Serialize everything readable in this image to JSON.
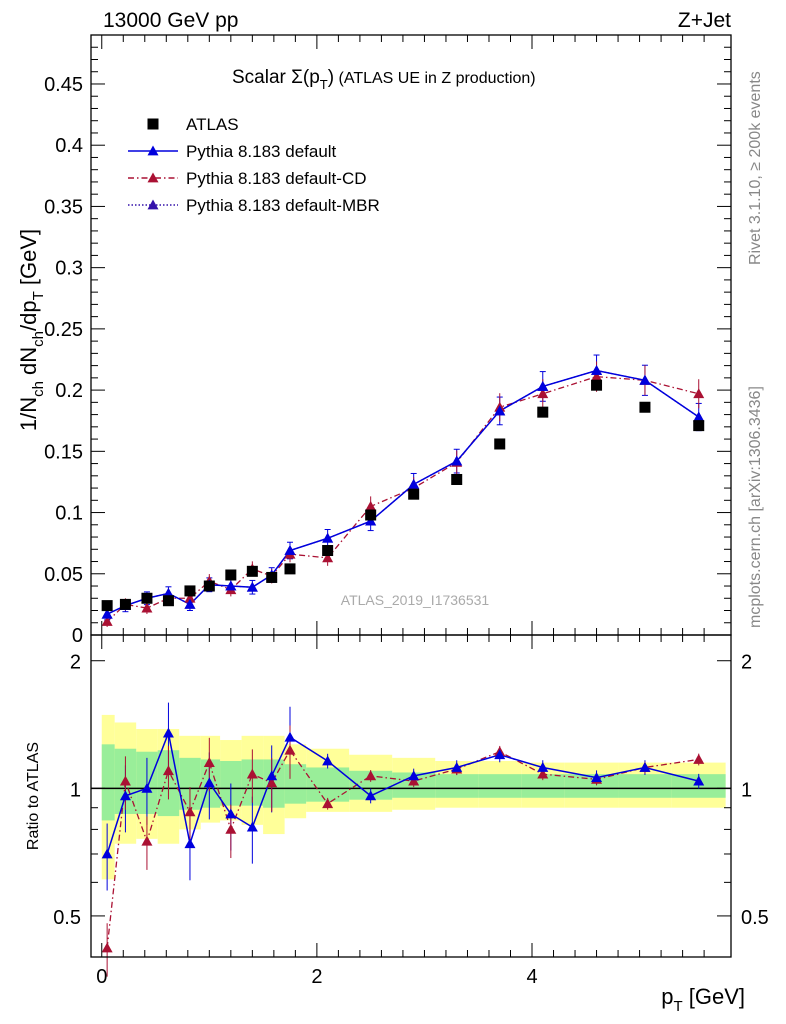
{
  "header": {
    "left": "13000 GeV pp",
    "right": "Z+Jet"
  },
  "side_labels": {
    "rivet": "Rivet 3.1.10, ≥ 200k events",
    "mcplots": "mcplots.cern.ch [arXiv:1306.3436]"
  },
  "watermark": "ATLAS_2019_I1736531",
  "colors": {
    "data": "#000000",
    "default": "#0000dd",
    "cd": "#aa1133",
    "mbr": "#3311aa",
    "band_inner": "#99ee99",
    "band_outer": "#ffff99"
  },
  "chart_data": {
    "type": "scatter",
    "title": "Scalar Σ(p_T) (ATLAS UE in Z production)",
    "xlabel": "p_T [GeV]",
    "ylabel": "1/N_ch dN_ch/dp_T [GeV]",
    "ratio_ylabel": "Ratio to ATLAS",
    "xlim": [
      -0.1,
      5.85
    ],
    "ylim": [
      0,
      0.49
    ],
    "ratio_ylim": [
      0.4,
      2.3
    ],
    "xticks": [
      "0",
      "2",
      "4"
    ],
    "yticks": [
      "0",
      "0.05",
      "0.1",
      "0.15",
      "0.2",
      "0.25",
      "0.3",
      "0.35",
      "0.4",
      "0.45"
    ],
    "ratio_yticks": [
      "0.5",
      "1",
      "2"
    ],
    "legend": [
      {
        "label": "ATLAS",
        "style": "square"
      },
      {
        "label": "Pythia 8.183 default",
        "style": "solid"
      },
      {
        "label": "Pythia 8.183 default-CD",
        "style": "dashdot"
      },
      {
        "label": "Pythia 8.183 default-MBR",
        "style": "dotted"
      }
    ],
    "x": [
      0.05,
      0.22,
      0.42,
      0.62,
      0.82,
      1.0,
      1.2,
      1.4,
      1.58,
      1.75,
      2.1,
      2.5,
      2.9,
      3.3,
      3.7,
      4.1,
      4.6,
      5.05,
      5.55
    ],
    "series": [
      {
        "name": "ATLAS",
        "values": [
          0.024,
          0.025,
          0.03,
          0.028,
          0.036,
          0.04,
          0.049,
          0.052,
          0.047,
          0.054,
          0.069,
          0.098,
          0.115,
          0.127,
          0.156,
          0.182,
          0.204,
          0.186,
          0.171
        ]
      },
      {
        "name": "Pythia 8.183 default",
        "values": [
          0.017,
          0.024,
          0.03,
          0.034,
          0.025,
          0.041,
          0.04,
          0.039,
          0.049,
          0.069,
          0.079,
          0.093,
          0.123,
          0.142,
          0.183,
          0.203,
          0.216,
          0.208,
          0.178
        ]
      },
      {
        "name": "Pythia 8.183 default-CD",
        "values": [
          0.011,
          0.025,
          0.022,
          0.03,
          0.03,
          0.044,
          0.037,
          0.054,
          0.048,
          0.066,
          0.063,
          0.105,
          0.12,
          0.141,
          0.186,
          0.197,
          0.211,
          0.208,
          0.197
        ]
      },
      {
        "name": "Pythia 8.183 default-MBR",
        "values": [
          0.017,
          0.024,
          0.03,
          0.034,
          0.025,
          0.041,
          0.04,
          0.039,
          0.049,
          0.069,
          0.079,
          0.093,
          0.123,
          0.142,
          0.183,
          0.203,
          0.216,
          0.208,
          0.178
        ]
      }
    ],
    "ratio_series": [
      {
        "name": "Pythia 8.183 default",
        "values": [
          0.7,
          0.96,
          1.0,
          1.35,
          0.74,
          1.03,
          0.87,
          0.81,
          1.07,
          1.32,
          1.16,
          0.96,
          1.07,
          1.12,
          1.2,
          1.12,
          1.06,
          1.12,
          1.04
        ]
      },
      {
        "name": "Pythia 8.183 default-CD",
        "values": [
          0.42,
          1.04,
          0.75,
          1.1,
          0.88,
          1.15,
          0.8,
          1.08,
          1.03,
          1.23,
          0.92,
          1.07,
          1.04,
          1.11,
          1.22,
          1.08,
          1.05,
          1.12,
          1.17
        ]
      }
    ],
    "band_edges": [
      0.0,
      0.12,
      0.32,
      0.52,
      0.72,
      0.92,
      1.1,
      1.3,
      1.5,
      1.7,
      1.9,
      2.3,
      2.7,
      3.1,
      3.5,
      3.9,
      4.3,
      4.8,
      5.3,
      5.8
    ],
    "band_inner": [
      [
        0.84,
        1.27
      ],
      [
        0.87,
        1.24
      ],
      [
        0.87,
        1.22
      ],
      [
        0.86,
        1.23
      ],
      [
        0.89,
        1.18
      ],
      [
        0.9,
        1.17
      ],
      [
        0.91,
        1.16
      ],
      [
        0.91,
        1.17
      ],
      [
        0.9,
        1.17
      ],
      [
        0.92,
        1.14
      ],
      [
        0.93,
        1.12
      ],
      [
        0.94,
        1.1
      ],
      [
        0.95,
        1.09
      ],
      [
        0.95,
        1.08
      ],
      [
        0.95,
        1.08
      ],
      [
        0.95,
        1.08
      ],
      [
        0.95,
        1.08
      ],
      [
        0.95,
        1.08
      ],
      [
        0.95,
        1.08
      ]
    ],
    "band_outer": [
      [
        0.61,
        1.49
      ],
      [
        0.74,
        1.43
      ],
      [
        0.76,
        1.38
      ],
      [
        0.74,
        1.38
      ],
      [
        0.8,
        1.33
      ],
      [
        0.83,
        1.33
      ],
      [
        0.84,
        1.3
      ],
      [
        0.82,
        1.33
      ],
      [
        0.78,
        1.33
      ],
      [
        0.85,
        1.27
      ],
      [
        0.88,
        1.24
      ],
      [
        0.88,
        1.2
      ],
      [
        0.89,
        1.18
      ],
      [
        0.9,
        1.16
      ],
      [
        0.9,
        1.16
      ],
      [
        0.9,
        1.15
      ],
      [
        0.9,
        1.15
      ],
      [
        0.9,
        1.15
      ],
      [
        0.9,
        1.15
      ]
    ]
  }
}
